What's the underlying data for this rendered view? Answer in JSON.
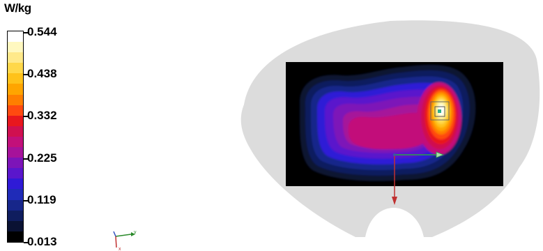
{
  "legend": {
    "unit": "W/kg",
    "ticks": [
      "0.544",
      "0.438",
      "0.332",
      "0.225",
      "0.119",
      "0.013"
    ],
    "colors": [
      "#ffffff",
      "#fff8c0",
      "#ffe98a",
      "#ffd84a",
      "#ffc21a",
      "#ffa500",
      "#ff7f00",
      "#ff4a10",
      "#e8171e",
      "#d01050",
      "#c2107a",
      "#a6129a",
      "#7d14b8",
      "#5a16cc",
      "#2f1ad6",
      "#1f2bb8",
      "#17268a",
      "#0f1d5e",
      "#0a1233",
      "#000000"
    ]
  },
  "axis_triad": {
    "y_label": "y",
    "x_label": "x"
  },
  "view": {
    "phantom_color": "#dcdcdc",
    "field_background": "#000000",
    "peak_value": "0.544"
  }
}
